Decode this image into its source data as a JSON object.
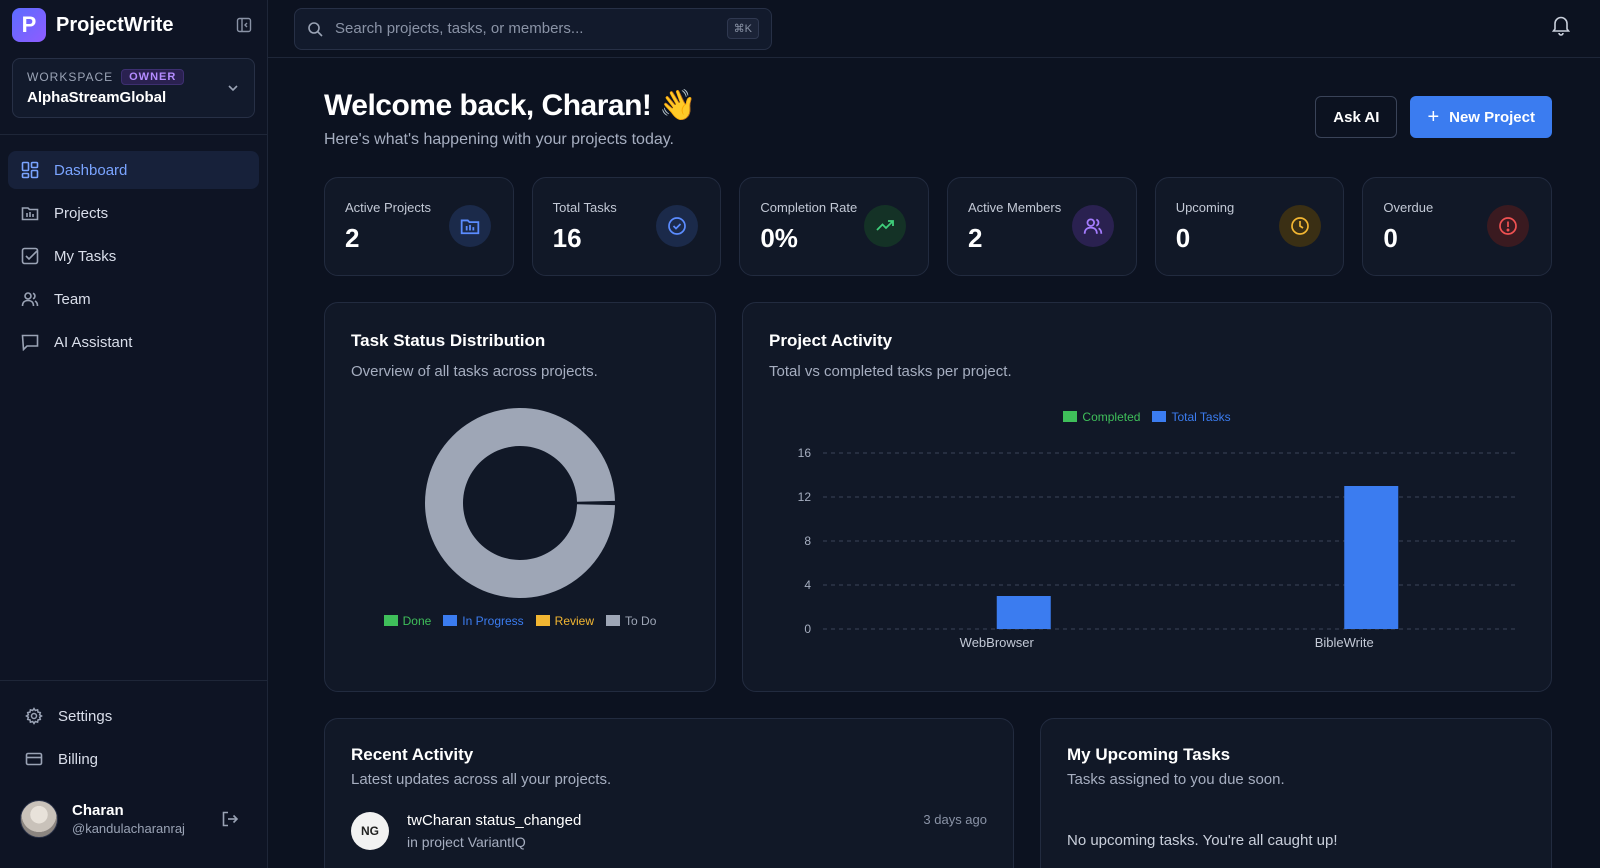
{
  "app": {
    "logo_letter": "P",
    "name": "ProjectWrite"
  },
  "workspace": {
    "label": "WORKSPACE",
    "badge": "OWNER",
    "name": "AlphaStreamGlobal"
  },
  "nav": [
    {
      "label": "Dashboard",
      "icon": "dashboard-icon",
      "active": true
    },
    {
      "label": "Projects",
      "icon": "projects-icon"
    },
    {
      "label": "My Tasks",
      "icon": "tasks-icon"
    },
    {
      "label": "Team",
      "icon": "team-icon"
    },
    {
      "label": "AI Assistant",
      "icon": "chat-icon"
    }
  ],
  "bottom_nav": [
    {
      "label": "Settings",
      "icon": "gear-icon"
    },
    {
      "label": "Billing",
      "icon": "card-icon"
    }
  ],
  "user": {
    "name": "Charan",
    "handle": "@kandulacharanraj"
  },
  "search": {
    "placeholder": "Search projects, tasks, or members...",
    "shortcut": "⌘K"
  },
  "header": {
    "title": "Welcome back, Charan! 👋",
    "subtitle": "Here's what's happening with your projects today.",
    "ask_ai": "Ask AI",
    "new_project": "New Project"
  },
  "stats": [
    {
      "label": "Active Projects",
      "value": "2",
      "icon": "folder-chart-icon",
      "color": "#5b8cff",
      "bg": "#1b2a4a"
    },
    {
      "label": "Total Tasks",
      "value": "16",
      "icon": "check-circle-icon",
      "color": "#5b8cff",
      "bg": "#1b2a4a"
    },
    {
      "label": "Completion Rate",
      "value": "0%",
      "icon": "trending-up-icon",
      "color": "#3fcf7a",
      "bg": "#143226"
    },
    {
      "label": "Active Members",
      "value": "2",
      "icon": "users-icon",
      "color": "#a57cff",
      "bg": "#2a2150"
    },
    {
      "label": "Upcoming",
      "value": "0",
      "icon": "clock-icon",
      "color": "#f2b632",
      "bg": "#3a2f14"
    },
    {
      "label": "Overdue",
      "value": "0",
      "icon": "alert-icon",
      "color": "#f05252",
      "bg": "#3a1a20"
    }
  ],
  "task_status": {
    "title": "Task Status Distribution",
    "subtitle": "Overview of all tasks across projects."
  },
  "project_activity": {
    "title": "Project Activity",
    "subtitle": "Total vs completed tasks per project."
  },
  "chart_data": [
    {
      "type": "pie",
      "labels": [
        "Done",
        "In Progress",
        "Review",
        "To Do"
      ],
      "values": [
        0,
        0,
        0,
        16
      ],
      "colors": [
        "#3fbf5a",
        "#3b7cf0",
        "#f2b632",
        "#9ea6b6"
      ],
      "legend": "bottom"
    },
    {
      "type": "bar",
      "categories": [
        "WebBrowser",
        "BibleWrite"
      ],
      "series": [
        {
          "name": "Completed",
          "values": [
            0,
            0
          ],
          "color": "#3fbf5a"
        },
        {
          "name": "Total Tasks",
          "values": [
            3,
            13
          ],
          "color": "#3b7cf0"
        }
      ],
      "ylim": [
        0,
        16
      ],
      "yticks": [
        "0",
        "4",
        "8",
        "12",
        "16"
      ],
      "grid": true,
      "legend": "top"
    }
  ],
  "recent_activity": {
    "title": "Recent Activity",
    "subtitle": "Latest updates across all your projects.",
    "items": [
      {
        "avatar": "NG",
        "title": "twCharan status_changed",
        "sub": "in project VariantIQ",
        "time": "3 days ago"
      }
    ]
  },
  "upcoming_tasks": {
    "title": "My Upcoming Tasks",
    "subtitle": "Tasks assigned to you due soon.",
    "empty": "No upcoming tasks. You're all caught up!"
  }
}
